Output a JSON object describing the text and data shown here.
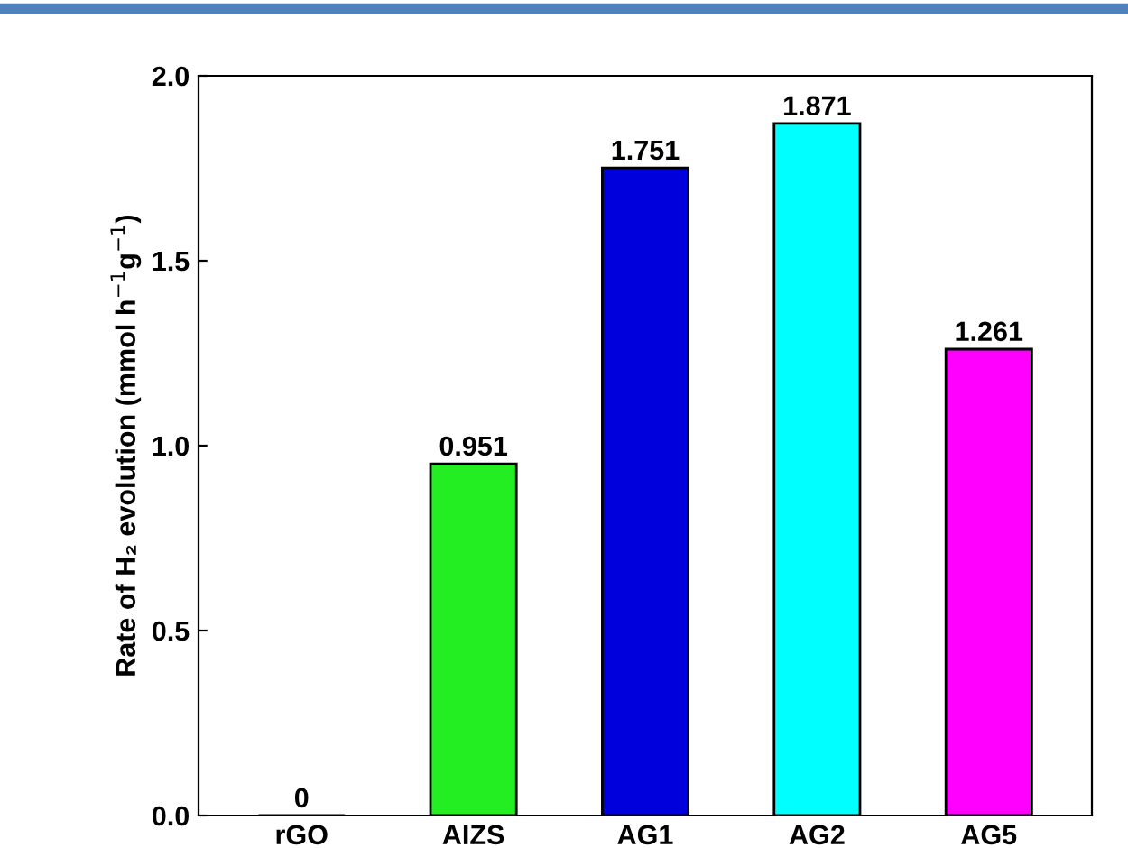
{
  "chart_data": {
    "type": "bar",
    "ylabel": "Rate of H₂ evolution (mmol h$^{−1}$g$^{−1}$)",
    "categories": [
      "rGO",
      "AIZS",
      "AG1",
      "AG2",
      "AG5"
    ],
    "values": [
      0,
      0.951,
      1.751,
      1.871,
      1.261
    ],
    "colors": [
      "#000000",
      "#22ee22",
      "#0000dd",
      "#00ffff",
      "#ff00ff"
    ],
    "value_labels": [
      "0",
      "0.951",
      "1.751",
      "1.871",
      "1.261"
    ],
    "ylim": [
      0,
      2.0
    ],
    "yticks": [
      {
        "value": 0,
        "label": "0.0"
      },
      {
        "value": 0.5,
        "label": "0.5"
      },
      {
        "value": 1.0,
        "label": "1.0"
      },
      {
        "value": 1.5,
        "label": "1.5"
      },
      {
        "value": 2.0,
        "label": "2.0"
      }
    ],
    "grid": false,
    "legend": false
  }
}
